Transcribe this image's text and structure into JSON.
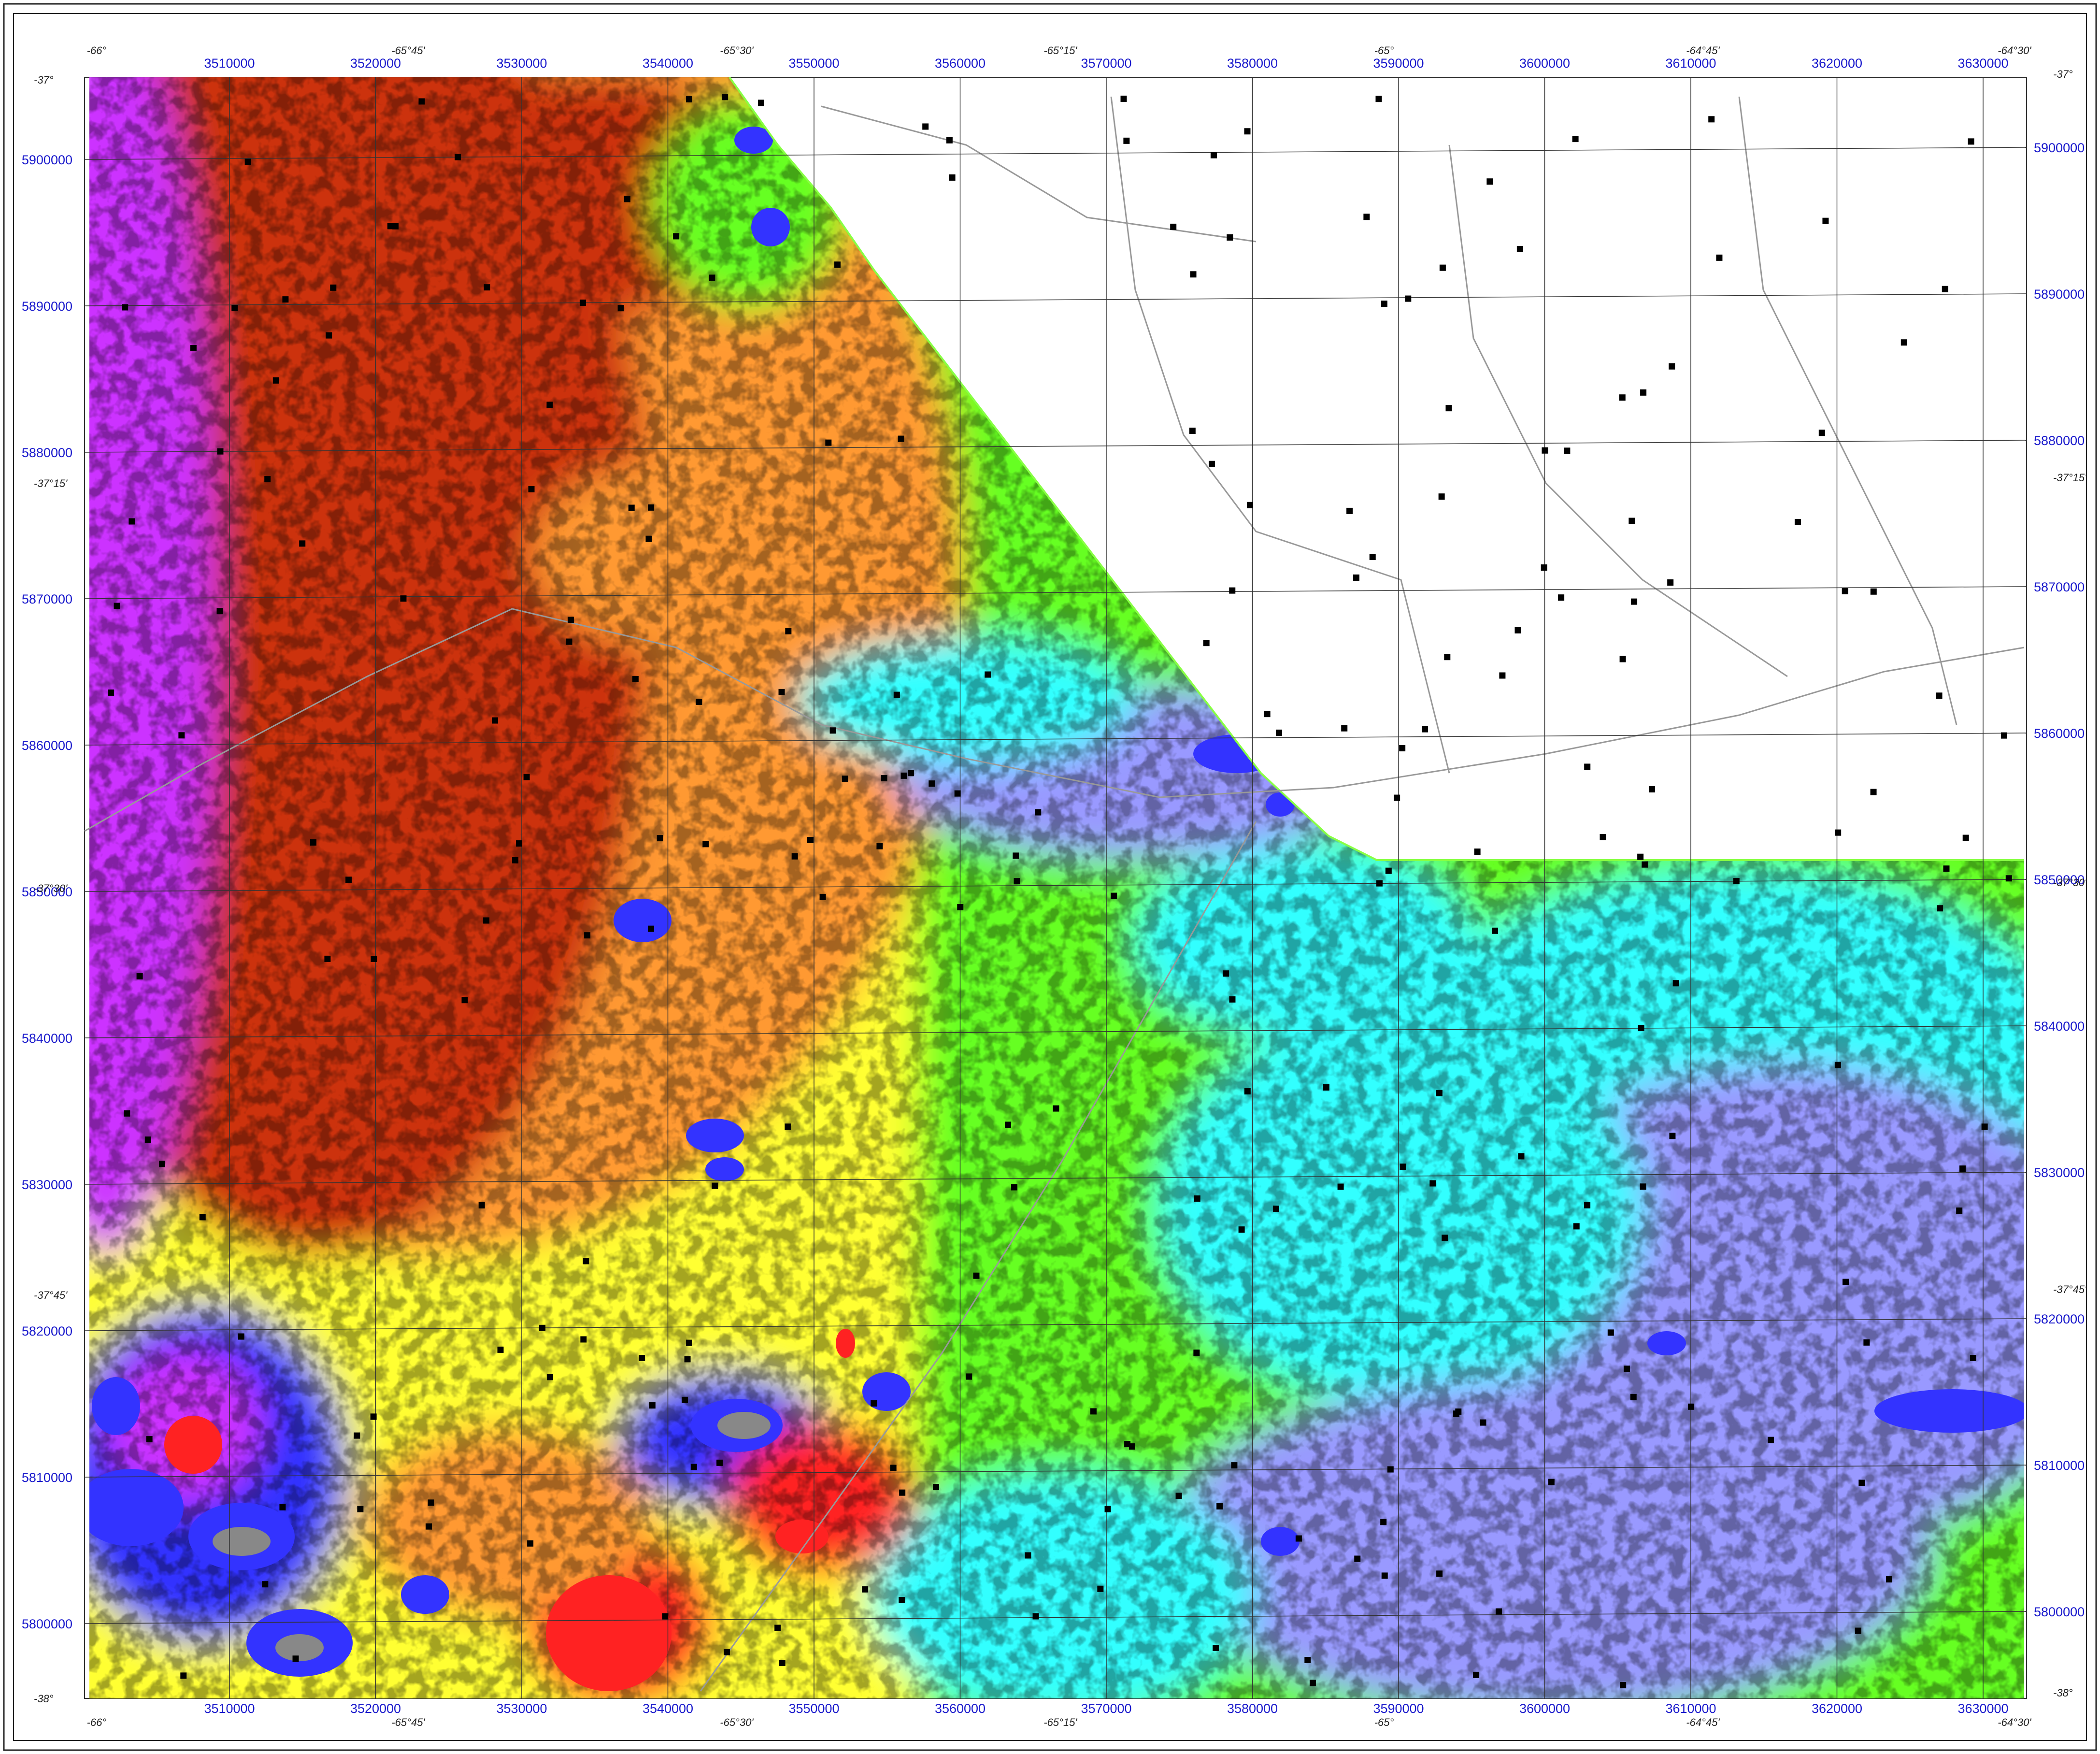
{
  "map": {
    "colors": {
      "magenta": "#cc33ff",
      "dark_red": "#cc3311",
      "red": "#ff2222",
      "orange": "#ff9933",
      "yellow": "#ffff33",
      "green": "#66ff22",
      "cyan": "#33ffff",
      "lavender": "#9999ff",
      "blue": "#3333ff",
      "gray": "#888888",
      "axis_label": "#1a1acc"
    },
    "easting_labels": [
      "3510000",
      "3520000",
      "3530000",
      "3540000",
      "3550000",
      "3560000",
      "3570000",
      "3580000",
      "3590000",
      "3600000",
      "3610000",
      "3620000",
      "3630000"
    ],
    "northing_labels": [
      "5900000",
      "5890000",
      "5880000",
      "5870000",
      "5860000",
      "5850000",
      "5840000",
      "5830000",
      "5820000",
      "5810000",
      "5800000"
    ],
    "longitude_labels": [
      "-66°",
      "-65°45'",
      "-65°30'",
      "-65°15'",
      "-65°",
      "-64°45'",
      "-64°30'"
    ],
    "latitude_labels": [
      "-37°",
      "-37°15'",
      "-37°30'",
      "-37°45'",
      "-38°"
    ]
  }
}
